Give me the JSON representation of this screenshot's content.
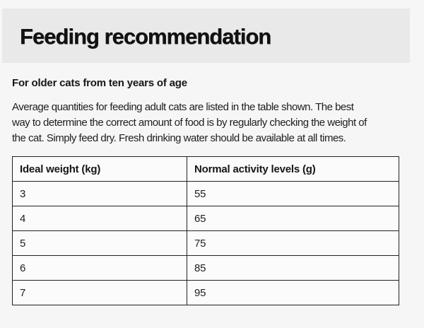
{
  "header": {
    "title": "Feeding recommendation"
  },
  "content": {
    "subtitle": "For older cats from ten years of age",
    "paragraph_lines": [
      "Average quantities for feeding adult cats are listed in the table shown. The best",
      "way to determine the correct amount of food is by regularly checking the weight of",
      "the cat. Simply feed dry. Fresh drinking water should be available at all times."
    ]
  },
  "table": {
    "columns": [
      "Ideal weight (kg)",
      "Normal activity levels (g)"
    ],
    "rows": [
      [
        "3",
        "55"
      ],
      [
        "4",
        "65"
      ],
      [
        "5",
        "75"
      ],
      [
        "6",
        "85"
      ],
      [
        "7",
        "95"
      ]
    ]
  },
  "colors": {
    "page_bg": "#f6f6f6",
    "band_bg": "#e9e9e9",
    "cell_bg": "#fbfbfb",
    "border": "#222222",
    "text": "#1c1c1c"
  }
}
